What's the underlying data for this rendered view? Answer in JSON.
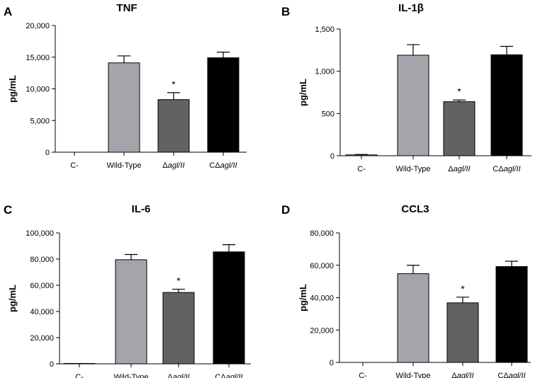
{
  "chart_data": [
    {
      "panel": "A",
      "type": "bar",
      "title": "TNF",
      "xlabel": "",
      "ylabel": "pg/mL",
      "ylim": [
        0,
        20000
      ],
      "yticks": [
        0,
        5000,
        10000,
        15000,
        20000
      ],
      "ytick_labels": [
        "0",
        "5,000",
        "10,000",
        "15,000",
        "20,000"
      ],
      "categories": [
        "C-",
        "Wild-Type",
        "Δagl/II",
        "CΔagl/II"
      ],
      "values": [
        0,
        14100,
        8300,
        14900
      ],
      "errors": [
        0,
        1100,
        1100,
        900
      ],
      "significance": [
        "",
        "",
        "*",
        ""
      ]
    },
    {
      "panel": "B",
      "type": "bar",
      "title": "IL-1β",
      "xlabel": "",
      "ylabel": "pg/mL",
      "ylim": [
        0,
        1500
      ],
      "yticks": [
        0,
        500,
        1000,
        1500
      ],
      "ytick_labels": [
        "0",
        "500",
        "1,000",
        "1,500"
      ],
      "categories": [
        "C-",
        "Wild-Type",
        "Δagl/II",
        "CΔagl/II"
      ],
      "values": [
        10,
        1190,
        640,
        1195
      ],
      "errors": [
        5,
        125,
        20,
        100
      ],
      "significance": [
        "",
        "",
        "*",
        ""
      ]
    },
    {
      "panel": "C",
      "type": "bar",
      "title": "IL-6",
      "xlabel": "",
      "ylabel": "pg/mL",
      "ylim": [
        0,
        100000
      ],
      "yticks": [
        0,
        20000,
        40000,
        60000,
        80000,
        100000
      ],
      "ytick_labels": [
        "0",
        "20,000",
        "40,000",
        "60,000",
        "80,000",
        "100,000"
      ],
      "categories": [
        "C-",
        "Wild-Type",
        "Δagl/II",
        "CΔagl/II"
      ],
      "values": [
        300,
        79500,
        54500,
        85500
      ],
      "errors": [
        0,
        4000,
        2500,
        5500
      ],
      "significance": [
        "",
        "",
        "*",
        ""
      ]
    },
    {
      "panel": "D",
      "type": "bar",
      "title": "CCL3",
      "xlabel": "",
      "ylabel": "pg/mL",
      "ylim": [
        0,
        80000
      ],
      "yticks": [
        0,
        20000,
        40000,
        60000,
        80000
      ],
      "ytick_labels": [
        "0",
        "20,000",
        "40,000",
        "60,000",
        "80,000"
      ],
      "categories": [
        "C-",
        "Wild-Type",
        "Δagl/II",
        "CΔagl/II"
      ],
      "values": [
        200,
        54800,
        36800,
        59200
      ],
      "errors": [
        0,
        5200,
        3500,
        3300
      ],
      "significance": [
        "",
        "",
        "*",
        ""
      ]
    }
  ],
  "bar_colors": [
    "#ffffff",
    "#a4a4aa",
    "#626262",
    "#000000"
  ]
}
